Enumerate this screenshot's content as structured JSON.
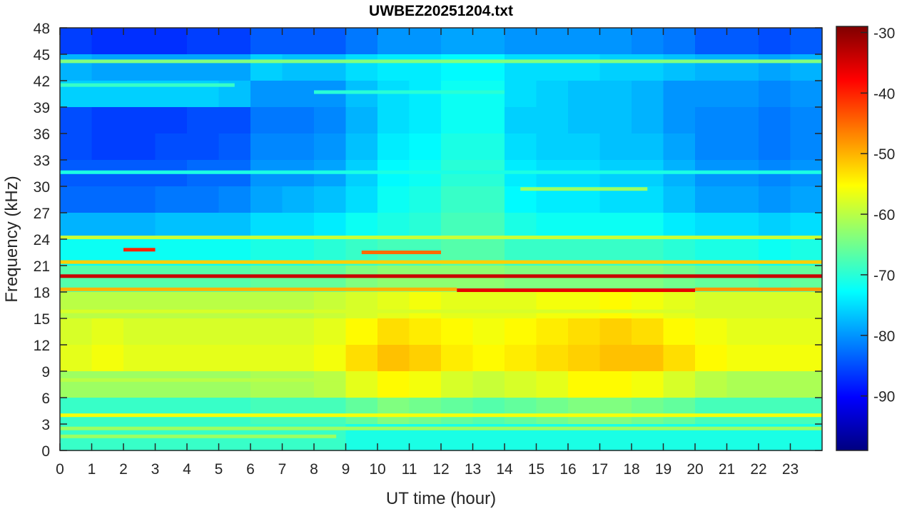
{
  "chart_data": {
    "type": "heatmap",
    "title": "UWBEZ20251204.txt",
    "xlabel": "UT time (hour)",
    "ylabel": "Frequency (kHz)",
    "xlim": [
      0,
      24
    ],
    "ylim": [
      0,
      48
    ],
    "xticks": [
      0,
      1,
      2,
      3,
      4,
      5,
      6,
      7,
      8,
      9,
      10,
      11,
      12,
      13,
      14,
      15,
      16,
      17,
      18,
      19,
      20,
      21,
      22,
      23
    ],
    "yticks": [
      0,
      3,
      6,
      9,
      12,
      15,
      18,
      21,
      24,
      27,
      30,
      33,
      36,
      39,
      42,
      45,
      48
    ],
    "colormap": "jet",
    "clim": [
      -99,
      -29
    ],
    "colorbar_ticks": [
      -90,
      -80,
      -70,
      -60,
      -50,
      -40,
      -30
    ],
    "time_bin_hours": 1,
    "freq_bins_khz": [
      [
        45,
        48
      ],
      [
        42,
        45
      ],
      [
        39,
        42
      ],
      [
        36,
        39
      ],
      [
        33,
        36
      ],
      [
        30,
        33
      ],
      [
        27,
        30
      ],
      [
        24,
        27
      ],
      [
        21,
        24
      ],
      [
        18,
        21
      ],
      [
        15,
        18
      ],
      [
        12,
        15
      ],
      [
        9,
        12
      ],
      [
        6,
        9
      ],
      [
        3,
        6
      ],
      [
        0,
        3
      ]
    ],
    "values_db": [
      [
        -86,
        -87,
        -87,
        -87,
        -86,
        -86,
        -84,
        -84,
        -84,
        -82,
        -80,
        -80,
        -79,
        -79,
        -80,
        -80,
        -80,
        -80,
        -81,
        -82,
        -84,
        -84,
        -85,
        -84
      ],
      [
        -78,
        -79,
        -79,
        -79,
        -79,
        -79,
        -76,
        -77,
        -77,
        -75,
        -74,
        -74,
        -73,
        -73,
        -75,
        -75,
        -75,
        -76,
        -76,
        -77,
        -78,
        -78,
        -79,
        -78
      ],
      [
        -76,
        -76,
        -76,
        -76,
        -76,
        -77,
        -80,
        -80,
        -80,
        -77,
        -75,
        -74,
        -72,
        -72,
        -75,
        -76,
        -77,
        -77,
        -78,
        -80,
        -80,
        -80,
        -81,
        -80
      ],
      [
        -85,
        -86,
        -86,
        -86,
        -85,
        -85,
        -82,
        -82,
        -81,
        -78,
        -75,
        -74,
        -72,
        -72,
        -76,
        -76,
        -77,
        -77,
        -78,
        -80,
        -81,
        -81,
        -82,
        -81
      ],
      [
        -85,
        -86,
        -86,
        -85,
        -85,
        -84,
        -81,
        -81,
        -80,
        -77,
        -74,
        -73,
        -71,
        -71,
        -75,
        -76,
        -76,
        -77,
        -77,
        -79,
        -81,
        -81,
        -82,
        -81
      ],
      [
        -84,
        -84,
        -84,
        -84,
        -83,
        -83,
        -80,
        -80,
        -79,
        -76,
        -73,
        -72,
        -70,
        -70,
        -74,
        -75,
        -75,
        -76,
        -76,
        -78,
        -80,
        -80,
        -81,
        -80
      ],
      [
        -83,
        -83,
        -83,
        -82,
        -82,
        -81,
        -79,
        -78,
        -77,
        -75,
        -72,
        -71,
        -69,
        -69,
        -73,
        -74,
        -74,
        -75,
        -75,
        -77,
        -79,
        -79,
        -80,
        -79
      ],
      [
        -78,
        -78,
        -78,
        -77,
        -77,
        -77,
        -75,
        -75,
        -74,
        -72,
        -71,
        -70,
        -68,
        -68,
        -71,
        -72,
        -72,
        -72,
        -72,
        -74,
        -75,
        -75,
        -76,
        -75
      ],
      [
        -72,
        -72,
        -72,
        -72,
        -72,
        -72,
        -71,
        -71,
        -70,
        -69,
        -68,
        -68,
        -67,
        -67,
        -69,
        -69,
        -69,
        -69,
        -69,
        -70,
        -71,
        -71,
        -72,
        -71
      ],
      [
        -67,
        -67,
        -67,
        -67,
        -67,
        -67,
        -66,
        -66,
        -66,
        -64,
        -63,
        -63,
        -63,
        -63,
        -64,
        -64,
        -64,
        -64,
        -64,
        -65,
        -66,
        -66,
        -67,
        -66
      ],
      [
        -60,
        -60,
        -60,
        -60,
        -60,
        -60,
        -60,
        -60,
        -59,
        -58,
        -57,
        -56,
        -57,
        -57,
        -57,
        -56,
        -56,
        -55,
        -56,
        -57,
        -58,
        -58,
        -58,
        -58
      ],
      [
        -58,
        -57,
        -58,
        -58,
        -58,
        -58,
        -58,
        -58,
        -57,
        -55,
        -53,
        -54,
        -55,
        -56,
        -55,
        -54,
        -53,
        -52,
        -53,
        -55,
        -56,
        -57,
        -57,
        -57
      ],
      [
        -57,
        -56,
        -57,
        -57,
        -57,
        -57,
        -57,
        -57,
        -56,
        -53,
        -51,
        -52,
        -54,
        -55,
        -54,
        -53,
        -52,
        -51,
        -51,
        -53,
        -55,
        -56,
        -56,
        -56
      ],
      [
        -62,
        -62,
        -62,
        -62,
        -62,
        -62,
        -61,
        -61,
        -60,
        -57,
        -55,
        -56,
        -58,
        -59,
        -58,
        -57,
        -55,
        -55,
        -56,
        -58,
        -60,
        -61,
        -61,
        -61
      ],
      [
        -69,
        -69,
        -69,
        -69,
        -69,
        -69,
        -68,
        -68,
        -68,
        -66,
        -64,
        -65,
        -66,
        -67,
        -66,
        -65,
        -64,
        -64,
        -65,
        -66,
        -68,
        -68,
        -68,
        -68
      ],
      [
        -69,
        -69,
        -69,
        -69,
        -69,
        -69,
        -69,
        -69,
        -69,
        -71,
        -71,
        -71,
        -71,
        -71,
        -71,
        -71,
        -71,
        -71,
        -71,
        -71,
        -71,
        -71,
        -71,
        -71
      ]
    ],
    "narrowband_lines": [
      {
        "freq_khz": 44.2,
        "start_h": 0,
        "end_h": 24,
        "db": -64
      },
      {
        "freq_khz": 41.5,
        "start_h": 0,
        "end_h": 5.5,
        "db": -69
      },
      {
        "freq_khz": 40.7,
        "start_h": 8,
        "end_h": 14,
        "db": -70
      },
      {
        "freq_khz": 31.6,
        "start_h": 0,
        "end_h": 24,
        "db": -71
      },
      {
        "freq_khz": 29.7,
        "start_h": 14.5,
        "end_h": 18.5,
        "db": -62
      },
      {
        "freq_khz": 24.2,
        "start_h": 0,
        "end_h": 24,
        "db": -59
      },
      {
        "freq_khz": 22.8,
        "start_h": 2,
        "end_h": 3,
        "db": -40
      },
      {
        "freq_khz": 22.5,
        "start_h": 9.5,
        "end_h": 12,
        "db": -45
      },
      {
        "freq_khz": 21.4,
        "start_h": 0,
        "end_h": 24,
        "db": -52
      },
      {
        "freq_khz": 19.8,
        "start_h": 0,
        "end_h": 24,
        "db": -34
      },
      {
        "freq_khz": 18.3,
        "start_h": 0,
        "end_h": 12.5,
        "db": -50
      },
      {
        "freq_khz": 18.2,
        "start_h": 12.5,
        "end_h": 20,
        "db": -36
      },
      {
        "freq_khz": 18.3,
        "start_h": 20,
        "end_h": 24,
        "db": -48
      },
      {
        "freq_khz": 15.8,
        "start_h": 0,
        "end_h": 24,
        "db": -58
      },
      {
        "freq_khz": 8.0,
        "start_h": 0,
        "end_h": 9,
        "db": -60
      },
      {
        "freq_khz": 4.0,
        "start_h": 0,
        "end_h": 24,
        "db": -56
      },
      {
        "freq_khz": 2.5,
        "start_h": 0,
        "end_h": 24,
        "db": -62
      },
      {
        "freq_khz": 1.6,
        "start_h": 0,
        "end_h": 8.7,
        "db": -62
      }
    ],
    "grid": false,
    "colorbar": "right"
  }
}
